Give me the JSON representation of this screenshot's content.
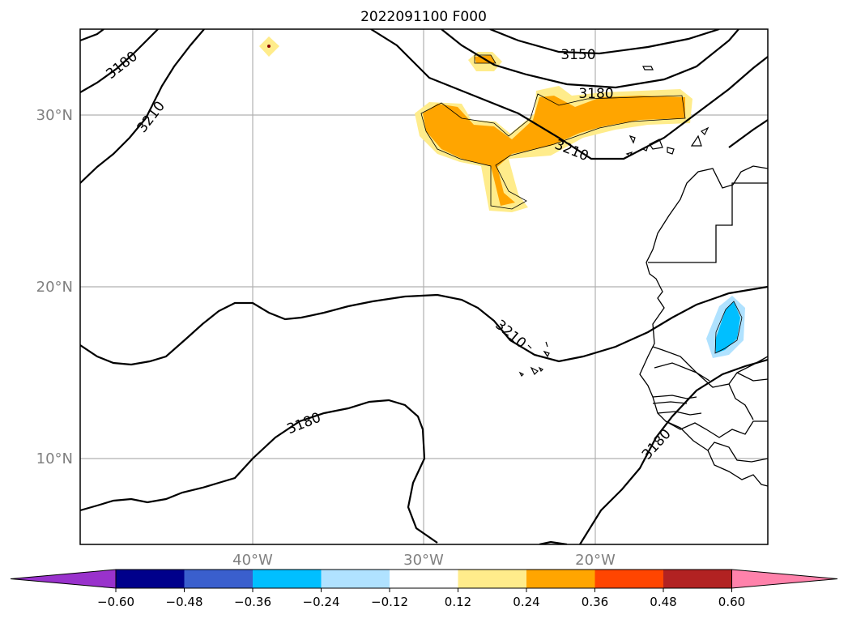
{
  "title": "2022091100 F000",
  "colors": {
    "frame": "#000000",
    "grid": "#b0b0b0",
    "axis_label": "#808080",
    "land": "#000000",
    "contour": "#000000"
  },
  "gridlines": {
    "lat_labels": [
      "30°N",
      "20°N",
      "10°N"
    ],
    "lon_labels": [
      "40°W",
      "30°W",
      "20°W"
    ]
  },
  "contour_labels": [
    "3180",
    "3210",
    "3150",
    "3180",
    "3210",
    "3210",
    "3180",
    "3180"
  ],
  "colorbar": {
    "colors": [
      "#9932cc",
      "#00008b",
      "#3a5fcd",
      "#00bfff",
      "#b0e2ff",
      "#ffffff",
      "#ffec8b",
      "#ffa500",
      "#ff4500",
      "#b22222",
      "#ff82ab"
    ],
    "tick_labels": [
      "−0.60",
      "−0.48",
      "−0.36",
      "−0.24",
      "−0.12",
      "0.12",
      "0.24",
      "0.36",
      "0.48",
      "0.60"
    ]
  }
}
